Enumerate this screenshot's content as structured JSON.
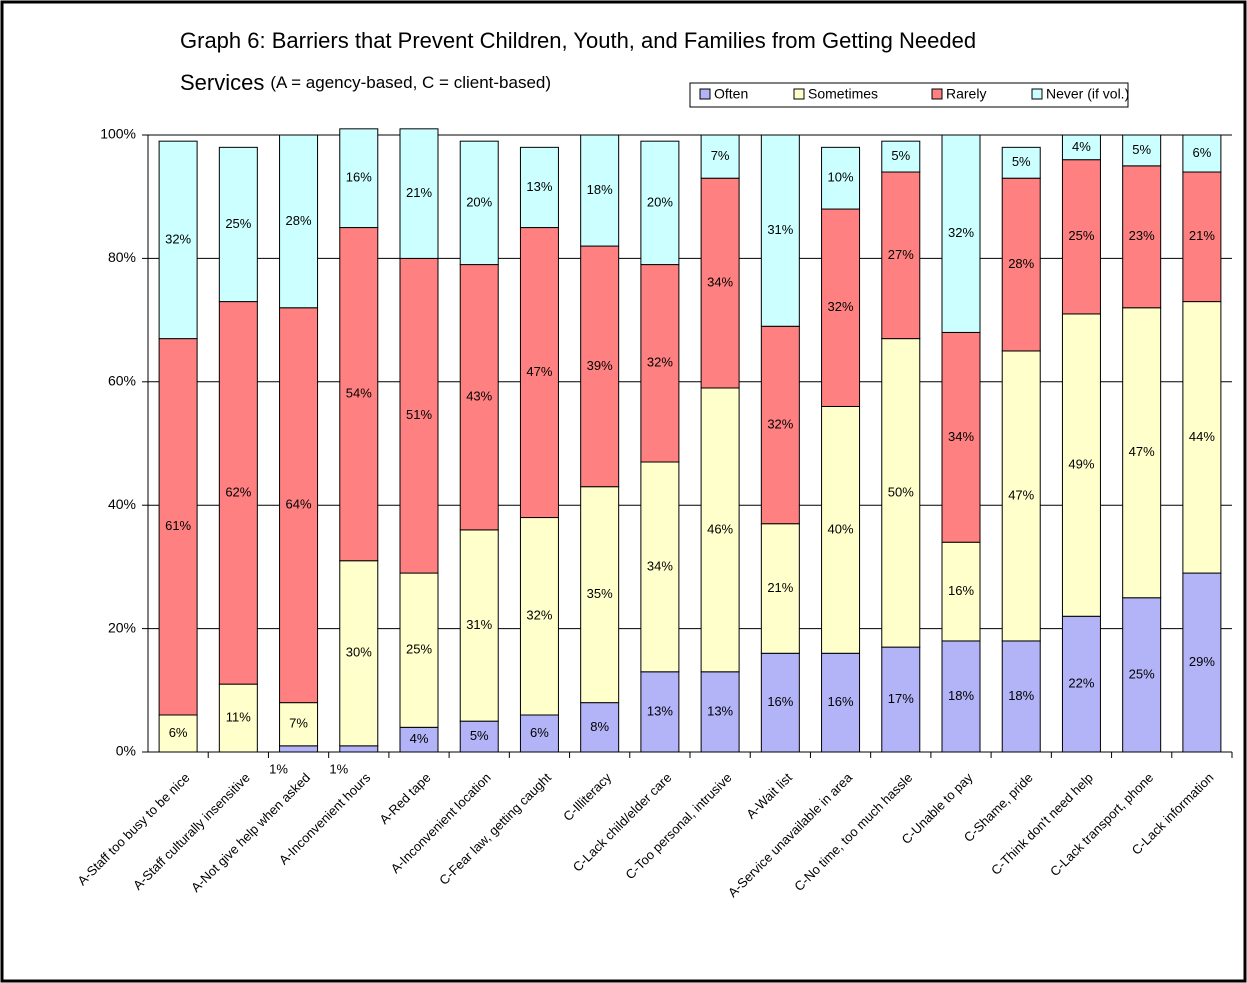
{
  "chart_data": {
    "type": "stacked_bar",
    "title_lines": [
      "Graph 6: Barriers that Prevent Children, Youth, and Families from Getting Needed",
      "Services"
    ],
    "subtitle": "(A = agency-based, C = client-based)",
    "categories": [
      "A-Staff too busy to be nice",
      "A-Staff culturally insensitive",
      "A-Not give help when asked",
      "A-Inconvenient hours",
      "A-Red tape",
      "A-Inconvenient location",
      "C-Fear law, getting caught",
      "C-Illiteracy",
      "C-Lack child/elder care",
      "C-Too personal, intrusive",
      "A-Wait list",
      "A-Service unavailable in area",
      "C-No time, too much hassle",
      "C-Unable to pay",
      "C-Shame, pride",
      "C-Think don't need help",
      "C-Lack transport, phone",
      "C-Lack information"
    ],
    "series": [
      {
        "name": "Often",
        "color": "#b3b3f7",
        "values": [
          0,
          0,
          1,
          1,
          4,
          5,
          6,
          8,
          13,
          13,
          16,
          16,
          17,
          18,
          18,
          22,
          25,
          29
        ],
        "value_labels": [
          null,
          null,
          "1%",
          "1%",
          "4%",
          "5%",
          "6%",
          "8%",
          "13%",
          "13%",
          "16%",
          "16%",
          "17%",
          "18%",
          "18%",
          "22%",
          "25%",
          "29%"
        ]
      },
      {
        "name": "Sometimes",
        "color": "#ffffcc",
        "values": [
          6,
          11,
          7,
          30,
          25,
          31,
          32,
          35,
          34,
          46,
          21,
          40,
          50,
          16,
          47,
          49,
          47,
          44
        ],
        "value_labels": [
          "6%",
          "11%",
          "7%",
          "30%",
          "25%",
          "31%",
          "32%",
          "35%",
          "34%",
          "46%",
          "21%",
          "40%",
          "50%",
          "16%",
          "47%",
          "49%",
          "47%",
          "44%"
        ]
      },
      {
        "name": "Rarely",
        "color": "#ff8080",
        "values": [
          61,
          62,
          64,
          54,
          51,
          43,
          47,
          39,
          32,
          34,
          32,
          32,
          27,
          34,
          28,
          25,
          23,
          21
        ],
        "value_labels": [
          "61%",
          "62%",
          "64%",
          "54%",
          "51%",
          "43%",
          "47%",
          "39%",
          "32%",
          "34%",
          "32%",
          "32%",
          "27%",
          "34%",
          "28%",
          "25%",
          "23%",
          "21%"
        ]
      },
      {
        "name": "Never (if vol.)",
        "color": "#ccffff",
        "values": [
          32,
          25,
          28,
          16,
          21,
          20,
          13,
          18,
          20,
          7,
          31,
          10,
          5,
          32,
          5,
          4,
          5,
          6
        ],
        "value_labels": [
          "32%",
          "25%",
          "28%",
          "16%",
          "21%",
          "20%",
          "13%",
          "18%",
          "20%",
          "7%",
          "31%",
          "10%",
          "5%",
          "32%",
          "5%",
          "4%",
          "5%",
          "6%"
        ]
      }
    ],
    "ylim": [
      0,
      100
    ],
    "yticks": [
      {
        "value": 0,
        "label": "0%"
      },
      {
        "value": 20,
        "label": "20%"
      },
      {
        "value": 40,
        "label": "40%"
      },
      {
        "value": 60,
        "label": "60%"
      },
      {
        "value": 80,
        "label": "80%"
      },
      {
        "value": 100,
        "label": "100%"
      }
    ],
    "grid": true,
    "legend": "top-right"
  }
}
